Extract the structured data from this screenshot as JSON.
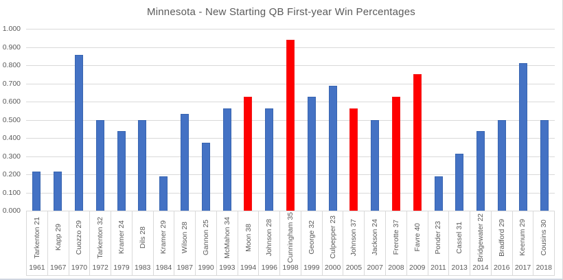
{
  "chart_data": {
    "type": "bar",
    "title": "Minnesota - New Starting QB First-year Win Percentages",
    "xlabel": "",
    "ylabel": "",
    "ylim": [
      0,
      1
    ],
    "ytick_step": 0.1,
    "ytick_labels_top_to_bottom": [
      "1.000",
      "0.900",
      "0.800",
      "0.700",
      "0.600",
      "0.500",
      "0.400",
      "0.300",
      "0.200",
      "0.100",
      "0.000"
    ],
    "grid": true,
    "legend": "none",
    "bar_color": "#4472C4",
    "highlight_color": "#FF0000",
    "axis_text_color": "#595959",
    "gridline_color": "#D9D9D9",
    "points": [
      {
        "qb": "Tarkenton 21",
        "year": "1961",
        "value": 0.214,
        "highlight": false
      },
      {
        "qb": "Kapp 29",
        "year": "1967",
        "value": 0.214,
        "highlight": false
      },
      {
        "qb": "Cuozzo 29",
        "year": "1970",
        "value": 0.857,
        "highlight": false
      },
      {
        "qb": "Tarkenton 32",
        "year": "1972",
        "value": 0.5,
        "highlight": false
      },
      {
        "qb": "Kramer 24",
        "year": "1979",
        "value": 0.438,
        "highlight": false
      },
      {
        "qb": "Dils 28",
        "year": "1983",
        "value": 0.5,
        "highlight": false
      },
      {
        "qb": "Kramer 29",
        "year": "1984",
        "value": 0.188,
        "highlight": false
      },
      {
        "qb": "Wilson 28",
        "year": "1987",
        "value": 0.533,
        "highlight": false
      },
      {
        "qb": "Gannon 25",
        "year": "1990",
        "value": 0.375,
        "highlight": false
      },
      {
        "qb": "McMahon 34",
        "year": "1993",
        "value": 0.563,
        "highlight": false
      },
      {
        "qb": "Moon 38",
        "year": "1994",
        "value": 0.625,
        "highlight": true
      },
      {
        "qb": "Johnson 28",
        "year": "1996",
        "value": 0.563,
        "highlight": false
      },
      {
        "qb": "Cunningham 35",
        "year": "1998",
        "value": 0.938,
        "highlight": true
      },
      {
        "qb": "George 32",
        "year": "1999",
        "value": 0.625,
        "highlight": false
      },
      {
        "qb": "Culpepper 23",
        "year": "2000",
        "value": 0.688,
        "highlight": false
      },
      {
        "qb": "Johnson 37",
        "year": "2005",
        "value": 0.563,
        "highlight": true
      },
      {
        "qb": "Jackson 24",
        "year": "2007",
        "value": 0.5,
        "highlight": false
      },
      {
        "qb": "Frerotte 37",
        "year": "2008",
        "value": 0.625,
        "highlight": true
      },
      {
        "qb": "Favre 40",
        "year": "2009",
        "value": 0.75,
        "highlight": true
      },
      {
        "qb": "Ponder 23",
        "year": "2011",
        "value": 0.188,
        "highlight": false
      },
      {
        "qb": "Cassel 31",
        "year": "2013",
        "value": 0.313,
        "highlight": false
      },
      {
        "qb": "Bridgewater 22",
        "year": "2014",
        "value": 0.438,
        "highlight": false
      },
      {
        "qb": "Bradford 29",
        "year": "2016",
        "value": 0.5,
        "highlight": false
      },
      {
        "qb": "Keenum 29",
        "year": "2017",
        "value": 0.813,
        "highlight": false
      },
      {
        "qb": "Cousins 30",
        "year": "2018",
        "value": 0.5,
        "highlight": false
      }
    ]
  }
}
